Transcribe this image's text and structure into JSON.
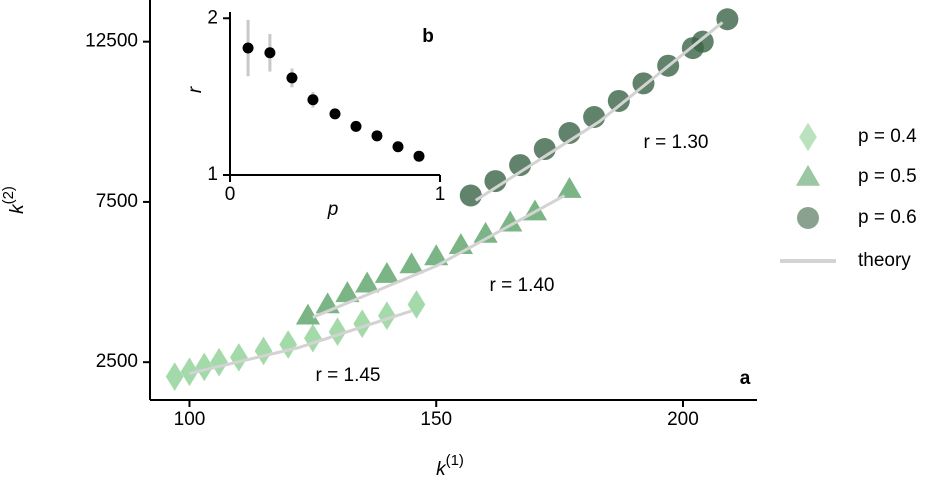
{
  "chart_data": [
    {
      "type": "scatter",
      "panel_label": "a",
      "xlabel": "k",
      "xlabel_sup": "(1)",
      "ylabel": "k",
      "ylabel_sup": "(2)",
      "xlim": [
        92,
        215
      ],
      "ylim": [
        1320,
        13800
      ],
      "xticks": [
        100,
        150,
        200
      ],
      "yticks": [
        2500,
        7500,
        12500
      ],
      "legend": "right",
      "series": [
        {
          "name": "p = 0.4",
          "marker": "diamond",
          "color": "#8dcf95",
          "x": [
            97,
            100,
            103,
            106,
            110,
            115,
            120,
            125,
            130,
            135,
            140,
            146
          ],
          "values": [
            2050,
            2200,
            2350,
            2500,
            2650,
            2850,
            3050,
            3250,
            3450,
            3700,
            3950,
            4300
          ]
        },
        {
          "name": "p = 0.5",
          "marker": "triangle",
          "color": "#5aa267",
          "x": [
            124,
            128,
            132,
            136,
            140,
            145,
            150,
            155,
            160,
            165,
            170,
            177
          ],
          "values": [
            3950,
            4300,
            4650,
            4950,
            5250,
            5550,
            5800,
            6150,
            6500,
            6850,
            7200,
            7900
          ]
        },
        {
          "name": "p = 0.6",
          "marker": "circle",
          "color": "#3b6446",
          "x": [
            157,
            162,
            167,
            172,
            177,
            182,
            187,
            192,
            197,
            202,
            204,
            209
          ],
          "values": [
            7700,
            8150,
            8650,
            9150,
            9650,
            10150,
            10650,
            11200,
            11750,
            12300,
            12500,
            13200
          ]
        },
        {
          "name": "theory",
          "marker": "line",
          "color": "#d3d3d3",
          "x": [
            100,
            122,
            145,
            145,
            125,
            150,
            176,
            176,
            158,
            183,
            208
          ],
          "values": [
            2150,
            2950,
            4100,
            null,
            3900,
            5500,
            7700,
            null,
            7550,
            10000,
            13100
          ]
        }
      ],
      "annotations": [
        "r = 1.45",
        "r = 1.40",
        "r = 1.30"
      ]
    },
    {
      "type": "errorbar",
      "panel_label": "b",
      "xlabel": "p",
      "ylabel": "r",
      "xlim": [
        0,
        1
      ],
      "ylim": [
        1,
        2.04
      ],
      "xticks": [
        0,
        1
      ],
      "yticks": [
        1,
        2
      ],
      "series": [
        {
          "color": "#000000",
          "error_color": "#c8c8c8",
          "x": [
            0.086,
            0.19,
            0.295,
            0.395,
            0.5,
            0.6,
            0.7,
            0.8,
            0.9
          ],
          "values": [
            1.81,
            1.78,
            1.62,
            1.48,
            1.39,
            1.31,
            1.25,
            1.18,
            1.12
          ],
          "errors": [
            0.18,
            0.12,
            0.06,
            0.05,
            0.02,
            0.02,
            0.02,
            0.02,
            0.02
          ]
        }
      ]
    }
  ]
}
